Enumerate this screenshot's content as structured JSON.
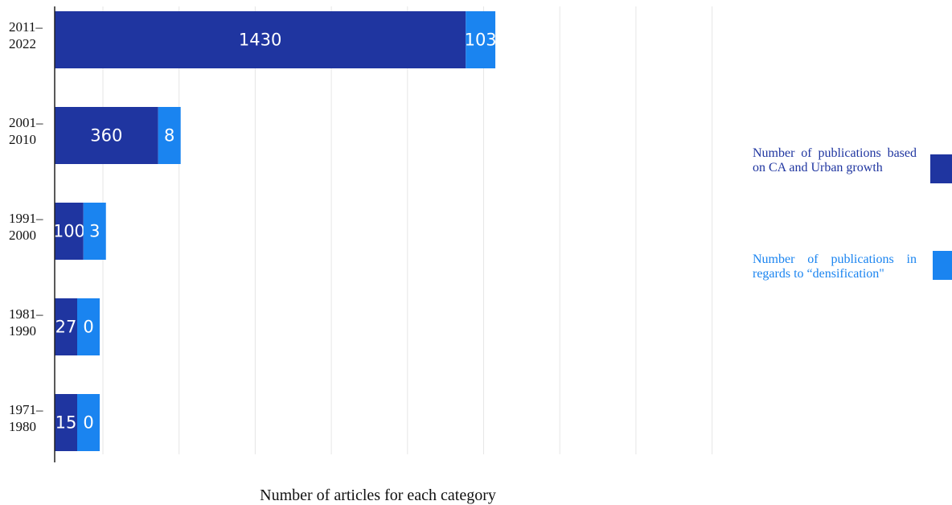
{
  "chart_data": {
    "type": "bar",
    "orientation": "horizontal",
    "stacked": true,
    "categories": [
      "2011–\n2022",
      "2001–\n2010",
      "1991–\n2000",
      "1981–\n1990",
      "1971–\n1980"
    ],
    "series": [
      {
        "name": "Number of publications based on CA and Urban growth",
        "values": [
          1430,
          360,
          100,
          27,
          15
        ],
        "color": "#1F35A0"
      },
      {
        "name": "Number of publications in regards to “densification\"",
        "values": [
          103,
          8,
          3,
          0,
          0
        ],
        "color": "#1A84F0"
      }
    ],
    "xlabel": "Number of articles for each category",
    "ylabel": "",
    "legend_position": "right",
    "grid": true
  }
}
